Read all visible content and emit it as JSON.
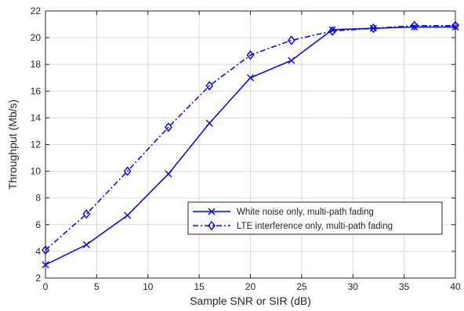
{
  "chart_data": {
    "type": "line",
    "title": "",
    "xlabel": "Sample SNR or SIR (dB)",
    "ylabel": "Throughput (Mb/s)",
    "xlim": [
      0,
      40
    ],
    "ylim": [
      2,
      22
    ],
    "xticks": [
      0,
      5,
      10,
      15,
      20,
      25,
      30,
      35,
      40
    ],
    "yticks": [
      2,
      4,
      6,
      8,
      10,
      12,
      14,
      16,
      18,
      20,
      22
    ],
    "grid": true,
    "legend_position": "lower-right",
    "series": [
      {
        "name": "White noise only, multi-path fading",
        "marker": "x",
        "line_style": "solid",
        "color": "#0000ff",
        "x": [
          0,
          4,
          8,
          12,
          16,
          20,
          24,
          28,
          32,
          36,
          40
        ],
        "y": [
          3.0,
          4.5,
          6.7,
          9.8,
          13.6,
          17.0,
          18.3,
          20.6,
          20.7,
          20.8,
          20.8
        ]
      },
      {
        "name": "LTE interference only, multi-path fading",
        "marker": "diamond",
        "line_style": "dashdot",
        "color": "#0000ff",
        "x": [
          0,
          4,
          8,
          12,
          16,
          20,
          24,
          28,
          32,
          36,
          40
        ],
        "y": [
          4.1,
          6.8,
          10.0,
          13.3,
          16.4,
          18.7,
          19.8,
          20.5,
          20.7,
          20.9,
          20.9
        ]
      }
    ]
  }
}
